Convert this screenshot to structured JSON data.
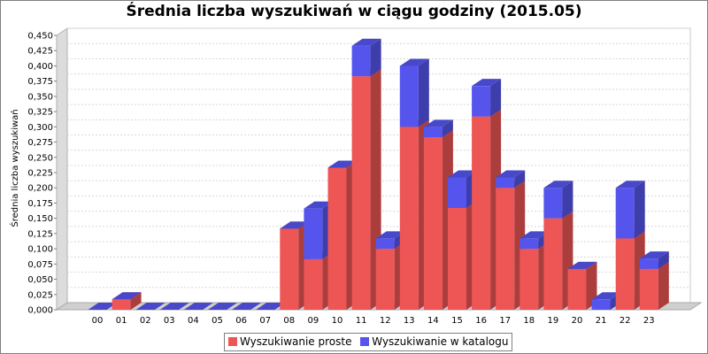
{
  "chart_data": {
    "type": "bar",
    "stacked": true,
    "three_d": true,
    "title": "Średnia liczba wyszukiwań w ciągu godziny (2015.05)",
    "ylabel": "Średnia liczba wyszukiwań",
    "xlabel": "",
    "ylim": [
      0,
      0.45
    ],
    "y_ticks": [
      "0,000",
      "0,025",
      "0,050",
      "0,075",
      "0,100",
      "0,125",
      "0,150",
      "0,175",
      "0,200",
      "0,225",
      "0,250",
      "0,275",
      "0,300",
      "0,325",
      "0,350",
      "0,375",
      "0,400",
      "0,425",
      "0,450"
    ],
    "grid": true,
    "legend_position": "bottom",
    "categories": [
      "00",
      "01",
      "02",
      "03",
      "04",
      "05",
      "06",
      "07",
      "08",
      "09",
      "10",
      "11",
      "12",
      "13",
      "14",
      "15",
      "16",
      "17",
      "18",
      "19",
      "20",
      "21",
      "22",
      "23"
    ],
    "series": [
      {
        "name": "Wyszukiwanie proste",
        "color": "#ee5555",
        "values": [
          0,
          0.017,
          0,
          0,
          0,
          0,
          0,
          0,
          0.133,
          0.083,
          0.233,
          0.383,
          0.1,
          0.3,
          0.283,
          0.167,
          0.317,
          0.2,
          0.1,
          0.15,
          0.067,
          0,
          0.117,
          0.067
        ]
      },
      {
        "name": "Wyszukiwanie w katalogu",
        "color": "#5555ee",
        "values": [
          0,
          0,
          0,
          0,
          0,
          0,
          0,
          0,
          0,
          0.083,
          0,
          0.05,
          0.017,
          0.1,
          0.017,
          0.05,
          0.05,
          0.017,
          0.017,
          0.05,
          0,
          0.017,
          0.083,
          0.017
        ]
      }
    ]
  }
}
